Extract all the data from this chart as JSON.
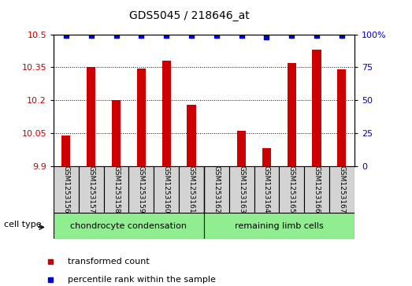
{
  "title": "GDS5045 / 218646_at",
  "samples": [
    "GSM1253156",
    "GSM1253157",
    "GSM1253158",
    "GSM1253159",
    "GSM1253160",
    "GSM1253161",
    "GSM1253162",
    "GSM1253163",
    "GSM1253164",
    "GSM1253165",
    "GSM1253166",
    "GSM1253167"
  ],
  "transformed_count": [
    10.04,
    10.35,
    10.2,
    10.345,
    10.38,
    10.18,
    9.895,
    10.06,
    9.98,
    10.37,
    10.43,
    10.34
  ],
  "percentile_rank": [
    99,
    99,
    99,
    99,
    99,
    99,
    99,
    99,
    98,
    99,
    99,
    99
  ],
  "cell_type_groups": [
    {
      "label": "chondrocyte condensation",
      "start": 0,
      "end": 5,
      "color": "#90EE90"
    },
    {
      "label": "remaining limb cells",
      "start": 6,
      "end": 11,
      "color": "#90EE90"
    }
  ],
  "ylim_left": [
    9.9,
    10.5
  ],
  "yticks_left": [
    9.9,
    10.05,
    10.2,
    10.35,
    10.5
  ],
  "ytick_labels_left": [
    "9.9",
    "10.05",
    "10.2",
    "10.35",
    "10.5"
  ],
  "yticks_right": [
    0,
    25,
    50,
    75,
    100
  ],
  "ytick_labels_right": [
    "0",
    "25",
    "50",
    "75",
    "100%"
  ],
  "bar_color": "#CC0000",
  "dot_color": "#0000CC",
  "label_color_left": "#CC0000",
  "label_color_right": "#0000CC",
  "bar_width": 0.35,
  "dot_markersize": 5,
  "title_fontsize": 10,
  "tick_fontsize": 8,
  "legend_fontsize": 8,
  "sample_fontsize": 6.5,
  "celltype_fontsize": 8
}
